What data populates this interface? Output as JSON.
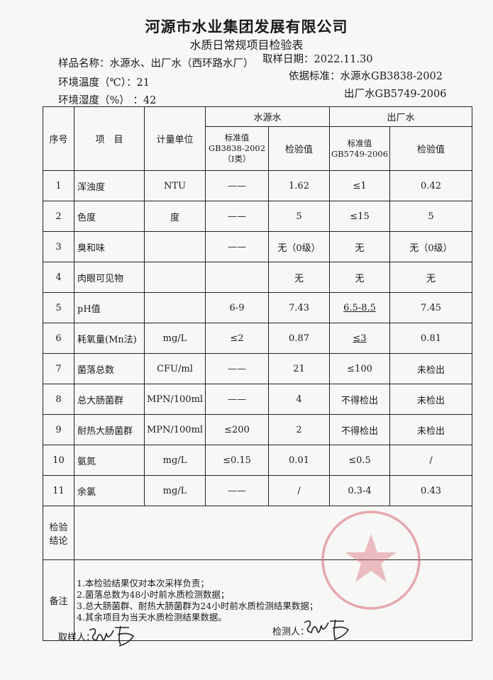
{
  "header": {
    "company": "河源市水业集团发展有限公司",
    "form_title": "水质日常规项目检验表",
    "sample_name": "样品名称：水源水、出厂水（西环路水厂）",
    "sample_date": "取样日期：2022.11.30",
    "temperature": "环境温度（℃）：21",
    "humidity": "环境湿度（%）  ：42",
    "standard_1": "依据标准：水源水GB3838-2002",
    "standard_2": "出厂水GB5749-2006"
  },
  "table": {
    "headers": {
      "no": "序号",
      "item": "项　目",
      "unit": "计量单位",
      "source_group": "水源水",
      "outlet_group": "出厂水",
      "source_std": "标准值",
      "source_std_code": "GB3838-2002",
      "source_std_class": "（Ⅰ类）",
      "source_val": "检验值",
      "outlet_std": "标准值",
      "outlet_std_code": "GB5749-2006",
      "outlet_val": "检验值"
    },
    "rows": [
      {
        "no": "1",
        "item": "浑浊度",
        "unit": "NTU",
        "s_std": "——",
        "s_val": "1.62",
        "o_std": "≤1",
        "o_val": "0.42"
      },
      {
        "no": "2",
        "item": "色度",
        "unit": "度",
        "s_std": "——",
        "s_val": "5",
        "o_std": "≤15",
        "o_val": "5"
      },
      {
        "no": "3",
        "item": "臭和味",
        "unit": "",
        "s_std": "——",
        "s_val": "无（0级）",
        "o_std": "无",
        "o_val": "无（0级）"
      },
      {
        "no": "4",
        "item": "肉眼可见物",
        "unit": "",
        "s_std": "",
        "s_val": "无",
        "o_std": "无",
        "o_val": "无"
      },
      {
        "no": "5",
        "item": "pH值",
        "unit": "",
        "s_std": "6-9",
        "s_val": "7.43",
        "o_std": "6.5-8.5",
        "o_val": "7.45"
      },
      {
        "no": "6",
        "item": "耗氧量(Mn法)",
        "unit": "mg/L",
        "s_std": "≤2",
        "s_val": "0.87",
        "o_std": "≤3",
        "o_val": "0.81"
      },
      {
        "no": "7",
        "item": "菌落总数",
        "unit": "CFU/ml",
        "s_std": "——",
        "s_val": "21",
        "o_std": "≤100",
        "o_val": "未检出"
      },
      {
        "no": "8",
        "item": "总大肠菌群",
        "unit": "MPN/100ml",
        "s_std": "——",
        "s_val": "4",
        "o_std": "不得检出",
        "o_val": "未检出"
      },
      {
        "no": "9",
        "item": "耐热大肠菌群",
        "unit": "MPN/100ml",
        "s_std": "≤200",
        "s_val": "2",
        "o_std": "不得检出",
        "o_val": "未检出"
      },
      {
        "no": "10",
        "item": "氨氮",
        "unit": "mg/L",
        "s_std": "≤0.15",
        "s_val": "0.01",
        "o_std": "≤0.5",
        "o_val": "/"
      },
      {
        "no": "11",
        "item": "余氯",
        "unit": "mg/L",
        "s_std": "——",
        "s_val": "/",
        "o_std": "0.3-4",
        "o_val": "0.43"
      }
    ],
    "conclusion_label_1": "检验",
    "conclusion_label_2": "结论",
    "conclusion": "",
    "notes_label": "备注",
    "notes": [
      "1.本检验结果仅对本次采样负责；",
      "2.菌落总数为48小时前水质检测数据；",
      "3.总大肠菌群、耐热大肠菌群为24小时前水质检测结果数据；",
      "4.其余项目为当天水质检测结果数据。"
    ]
  },
  "footer": {
    "sampler_label": "取样人：",
    "tester_label": "检测人："
  },
  "colors": {
    "seal": "#d9737f",
    "ink": "#1a1a1a"
  }
}
